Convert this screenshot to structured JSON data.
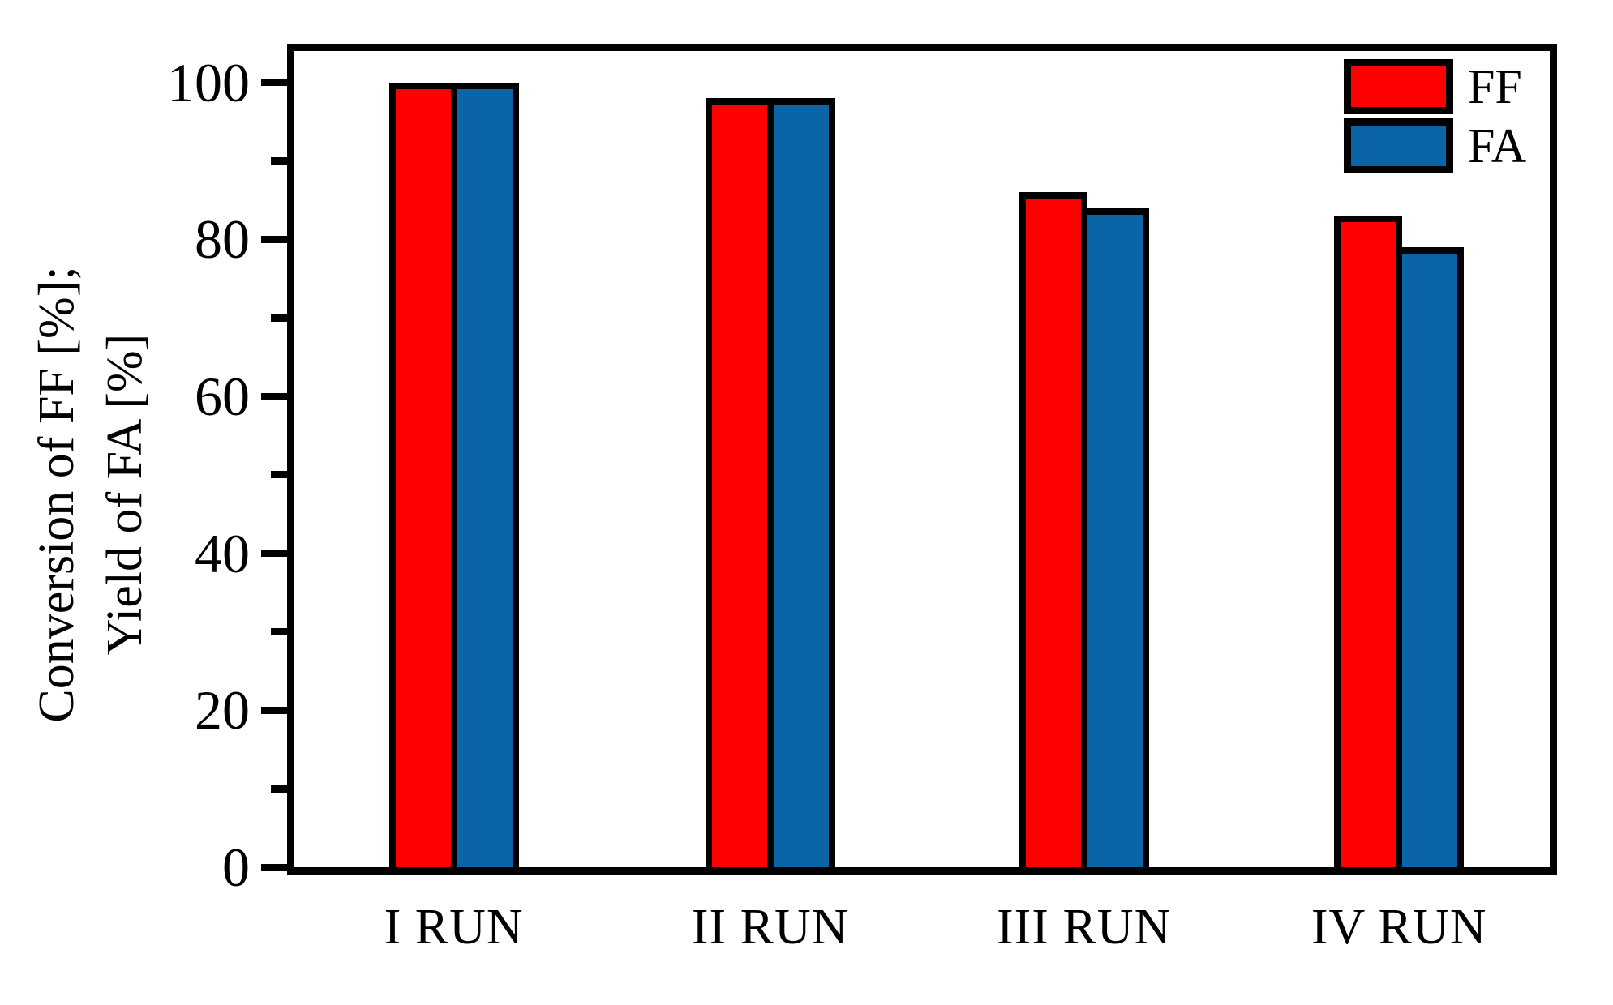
{
  "figure": {
    "background_color": "#ffffff",
    "frame_color": "#000000"
  },
  "y_axis": {
    "title_line1": "Conversion of FF [%];",
    "title_line2": "Yield of FA [%]",
    "major_ticks": [
      0,
      20,
      40,
      60,
      80,
      100
    ],
    "minor_ticks": [
      10,
      30,
      50,
      70,
      90
    ],
    "max_value": 104
  },
  "x_axis": {
    "group_center_fractions": [
      0.127,
      0.379,
      0.629,
      0.88
    ]
  },
  "legend": {
    "items": [
      {
        "label": "FF",
        "color": "#FF0000"
      },
      {
        "label": "FA",
        "color": "#0A64A6"
      }
    ]
  },
  "chart_data": {
    "type": "bar",
    "categories": [
      "I RUN",
      "II RUN",
      "III RUN",
      "IV RUN"
    ],
    "series": [
      {
        "name": "FF",
        "color": "#FF0000",
        "values": [
          100,
          98,
          86,
          83
        ]
      },
      {
        "name": "FA",
        "color": "#0A64A6",
        "values": [
          100,
          98,
          84,
          79
        ]
      }
    ],
    "title": "",
    "xlabel": "",
    "ylabel": "Conversion of FF [%]; Yield of FA [%]",
    "ylim": [
      0,
      104
    ],
    "grid": false,
    "legend_position": "top-right",
    "bar_borders": true
  }
}
